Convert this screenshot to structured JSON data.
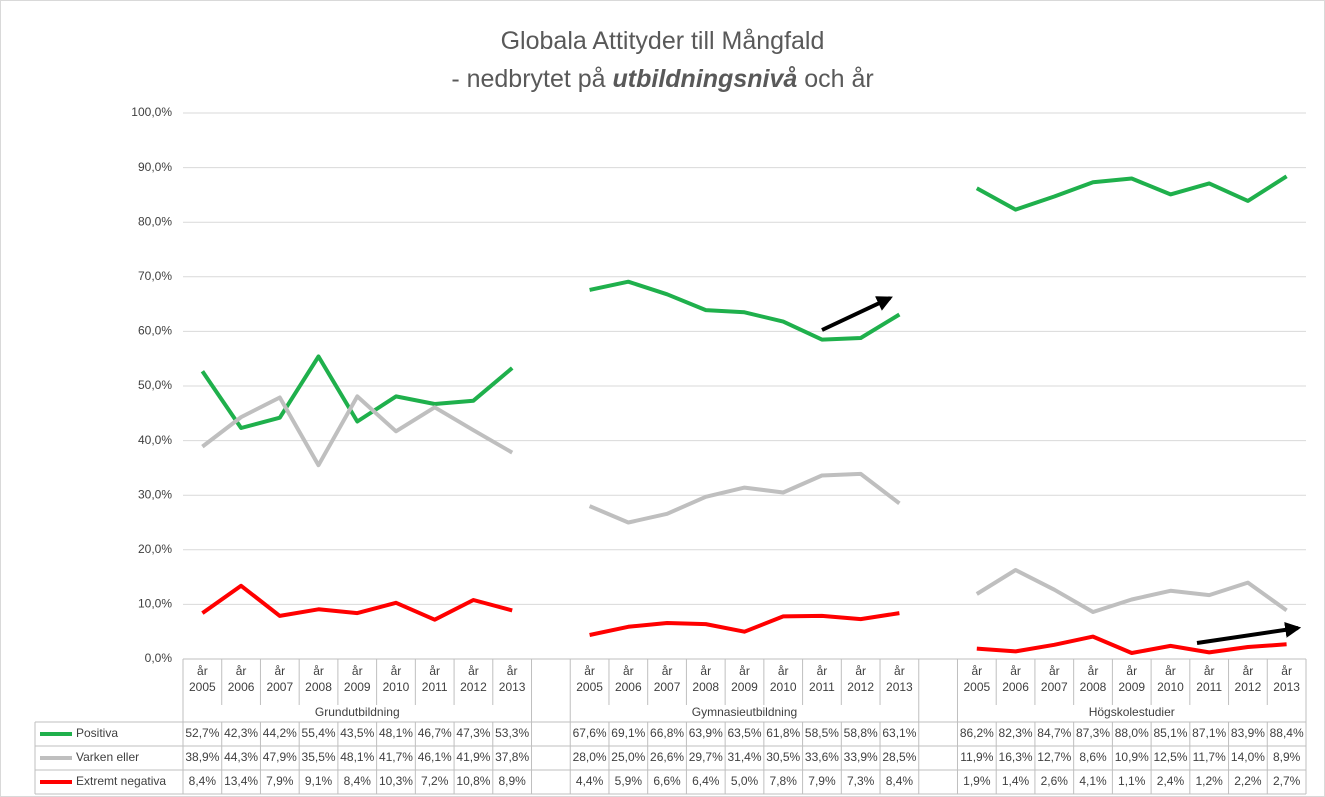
{
  "chart_data": {
    "type": "line",
    "title": "Globala Attityder till Mångfald",
    "subtitle": [
      "- nedbrytet på",
      "utbildningsnivå",
      "och år"
    ],
    "categories": [
      "år 2005",
      "år 2006",
      "år 2007",
      "år 2008",
      "år 2009",
      "år 2010",
      "år 2011",
      "år 2012",
      "år 2013",
      null,
      "år 2005",
      "år 2006",
      "år 2007",
      "år 2008",
      "år 2009",
      "år 2010",
      "år 2011",
      "år 2012",
      "år 2013",
      null,
      "år 2005",
      "år 2006",
      "år 2007",
      "år 2008",
      "år 2009",
      "år 2010",
      "år 2011",
      "år 2012",
      "år 2013"
    ],
    "groups": [
      "Grundutbildning",
      "Gymnasieutbildning",
      "Högskolestudier"
    ],
    "ylim": [
      0,
      100
    ],
    "yticks": [
      {
        "value": 0,
        "label": "0,0%"
      },
      {
        "value": 10,
        "label": "10,0%"
      },
      {
        "value": 20,
        "label": "20,0%"
      },
      {
        "value": 30,
        "label": "30,0%"
      },
      {
        "value": 40,
        "label": "40,0%"
      },
      {
        "value": 50,
        "label": "50,0%"
      },
      {
        "value": 60,
        "label": "60,0%"
      },
      {
        "value": 70,
        "label": "70,0%"
      },
      {
        "value": 80,
        "label": "80,0%"
      },
      {
        "value": 90,
        "label": "90,0%"
      },
      {
        "value": 100,
        "label": "100,0%"
      }
    ],
    "grid": true,
    "series": [
      {
        "name": "Positiva",
        "color": "#1fb04c",
        "values": [
          52.7,
          42.3,
          44.2,
          55.4,
          43.5,
          48.1,
          46.7,
          47.3,
          53.3,
          null,
          67.6,
          69.1,
          66.8,
          63.9,
          63.5,
          61.8,
          58.5,
          58.8,
          63.1,
          null,
          86.2,
          82.3,
          84.7,
          87.3,
          88.0,
          85.1,
          87.1,
          83.9,
          88.4
        ],
        "value_labels": [
          "52,7%",
          "42,3%",
          "44,2%",
          "55,4%",
          "43,5%",
          "48,1%",
          "46,7%",
          "47,3%",
          "53,3%",
          null,
          "67,6%",
          "69,1%",
          "66,8%",
          "63,9%",
          "63,5%",
          "61,8%",
          "58,5%",
          "58,8%",
          "63,1%",
          null,
          "86,2%",
          "82,3%",
          "84,7%",
          "87,3%",
          "88,0%",
          "85,1%",
          "87,1%",
          "83,9%",
          "88,4%"
        ]
      },
      {
        "name": "Varken eller",
        "color": "#bfbfbf",
        "values": [
          38.9,
          44.3,
          47.9,
          35.5,
          48.1,
          41.7,
          46.1,
          41.9,
          37.8,
          null,
          28.0,
          25.0,
          26.6,
          29.7,
          31.4,
          30.5,
          33.6,
          33.9,
          28.5,
          null,
          11.9,
          16.3,
          12.7,
          8.6,
          10.9,
          12.5,
          11.7,
          14.0,
          8.9
        ],
        "value_labels": [
          "38,9%",
          "44,3%",
          "47,9%",
          "35,5%",
          "48,1%",
          "41,7%",
          "46,1%",
          "41,9%",
          "37,8%",
          null,
          "28,0%",
          "25,0%",
          "26,6%",
          "29,7%",
          "31,4%",
          "30,5%",
          "33,6%",
          "33,9%",
          "28,5%",
          null,
          "11,9%",
          "16,3%",
          "12,7%",
          "8,6%",
          "10,9%",
          "12,5%",
          "11,7%",
          "14,0%",
          "8,9%"
        ]
      },
      {
        "name": "Extremt negativa",
        "color": "#ff0000",
        "values": [
          8.4,
          13.4,
          7.9,
          9.1,
          8.4,
          10.3,
          7.2,
          10.8,
          8.9,
          null,
          4.4,
          5.9,
          6.6,
          6.4,
          5.0,
          7.8,
          7.9,
          7.3,
          8.4,
          null,
          1.9,
          1.4,
          2.6,
          4.1,
          1.1,
          2.4,
          1.2,
          2.2,
          2.7
        ],
        "value_labels": [
          "8,4%",
          "13,4%",
          "7,9%",
          "9,1%",
          "8,4%",
          "10,3%",
          "7,2%",
          "10,8%",
          "8,9%",
          null,
          "4,4%",
          "5,9%",
          "6,6%",
          "6,4%",
          "5,0%",
          "7,8%",
          "7,9%",
          "7,3%",
          "8,4%",
          null,
          "1,9%",
          "1,4%",
          "2,6%",
          "4,1%",
          "1,1%",
          "2,4%",
          "1,2%",
          "2,2%",
          "2,7%"
        ]
      }
    ]
  }
}
